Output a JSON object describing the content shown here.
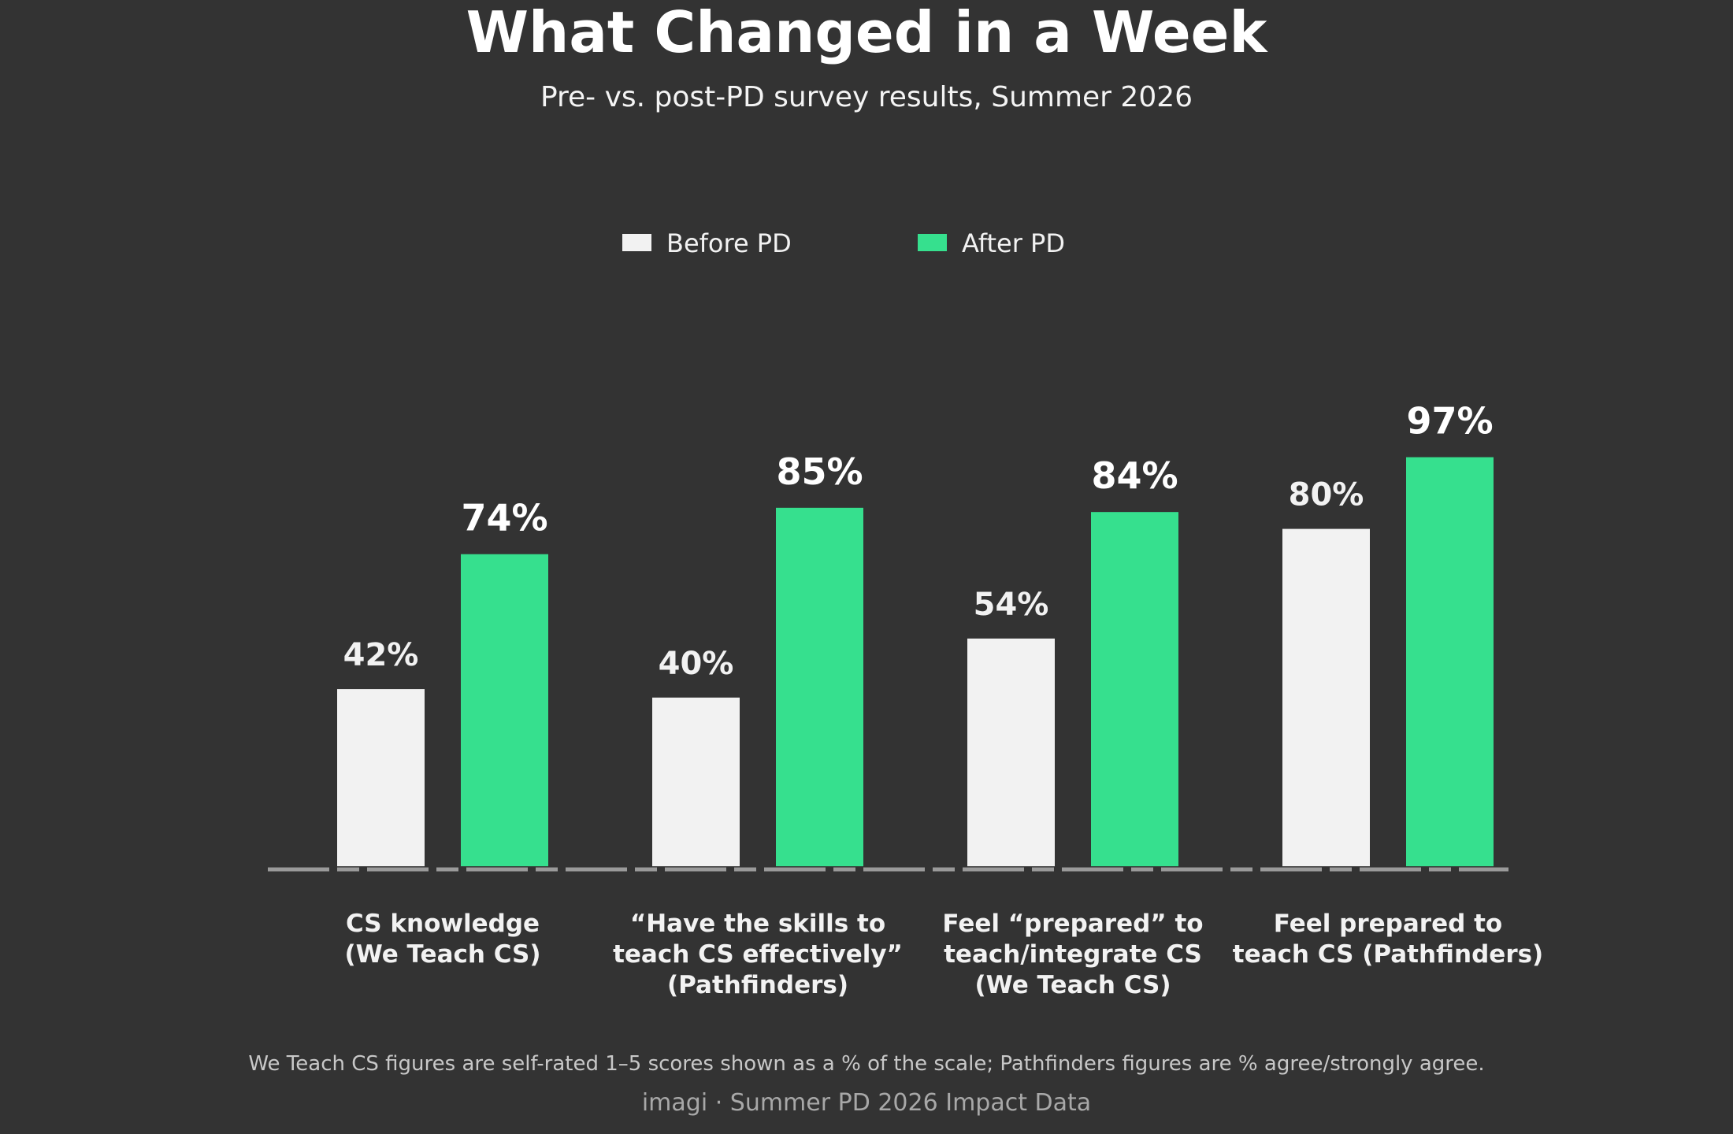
{
  "header": {
    "title": "What Changed in a Week",
    "subtitle": "Pre- vs. post-PD survey results, Summer 2026"
  },
  "footer": {
    "note": "We Teach CS figures are self-rated 1–5 scores shown as a % of the scale; Pathfinders figures are % agree/strongly agree.",
    "credit": "imagi · Summer PD 2026 Impact Data"
  },
  "colors": {
    "background": "#333333",
    "before": "#f2f2f2",
    "after": "#36e08e",
    "axis": "#9a9a9a"
  },
  "chart_data": {
    "type": "bar",
    "title": "What Changed in a Week",
    "subtitle": "Pre- vs. post-PD survey results, Summer 2026",
    "xlabel": "",
    "ylabel": "",
    "ylim": [
      0,
      100
    ],
    "grid": false,
    "legend_position": "top-center",
    "categories": [
      [
        "CS knowledge",
        "(We Teach CS)"
      ],
      [
        "“Have the skills to",
        "teach CS effectively”",
        "(Pathfinders)"
      ],
      [
        "Feel “prepared” to",
        "teach/integrate CS",
        "(We Teach CS)"
      ],
      [
        "Feel prepared to",
        "teach CS (Pathfinders)"
      ]
    ],
    "series": [
      {
        "name": "Before PD",
        "values": [
          42,
          40,
          54,
          80
        ],
        "labels": [
          "42%",
          "40%",
          "54%",
          "80%"
        ]
      },
      {
        "name": "After PD",
        "values": [
          74,
          85,
          84,
          97
        ],
        "labels": [
          "74%",
          "85%",
          "84%",
          "97%"
        ]
      }
    ]
  }
}
